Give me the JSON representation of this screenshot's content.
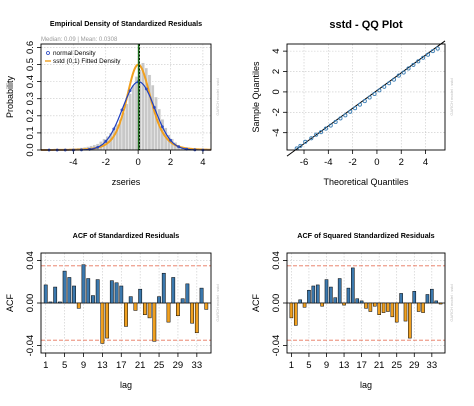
{
  "colors": {
    "hist_bar": "#c8c8c8",
    "hist_bar_edge": "#ffffff",
    "normal_curve": "#1f3fbf",
    "sstd_curve": "#f0a020",
    "mean_line": "#1a6e1a",
    "median_line": "#000000",
    "qq_points": "#3d7fb5",
    "qq_line": "#000000",
    "acf_pos": "#3b78ad",
    "acf_neg": "#f0a020",
    "conf_band": "#e8735a",
    "grid": "#c8c8c8",
    "credit": "#bbbbbb"
  },
  "chart_data": [
    {
      "type": "histogram",
      "title": "Empirical Density of Standardized Residuals",
      "subtitle": "Median: 0.09 | Mean: 0.0308",
      "xlabel": "zseries",
      "ylabel": "Probability",
      "credit": "GARCH model : sstd",
      "xlim": [
        -6,
        4.5
      ],
      "ylim": [
        0,
        0.62
      ],
      "xticks": [
        -4,
        -2,
        0,
        2,
        4
      ],
      "yticks": [
        0.0,
        0.1,
        0.2,
        0.3,
        0.4,
        0.5,
        0.6
      ],
      "grid": true,
      "median": 0.09,
      "mean": 0.0308,
      "bins": {
        "start": -5.8,
        "width": 0.2,
        "values": [
          0.005,
          0.0,
          0.005,
          0.0,
          0.0,
          0.005,
          0.008,
          0.0,
          0.008,
          0.01,
          0.012,
          0.014,
          0.016,
          0.02,
          0.025,
          0.03,
          0.037,
          0.05,
          0.065,
          0.08,
          0.1,
          0.12,
          0.15,
          0.18,
          0.22,
          0.27,
          0.33,
          0.38,
          0.43,
          0.47,
          0.51,
          0.48,
          0.44,
          0.38,
          0.31,
          0.24,
          0.18,
          0.13,
          0.09,
          0.065,
          0.045,
          0.03,
          0.02,
          0.013,
          0.008,
          0.005,
          0.003,
          0.002,
          0.0,
          0.0
        ]
      },
      "series": [
        {
          "name": "normal Density",
          "kind": "normal",
          "mean": 0.0308,
          "sd": 1.0
        },
        {
          "name": "sstd (0,1) Fitted Density",
          "kind": "sstd",
          "mean": 0.0,
          "sd": 1.0
        }
      ],
      "legend": {
        "placement": "top-left"
      }
    },
    {
      "type": "scatter",
      "title": "sstd - QQ Plot",
      "xlabel": "Theoretical Quantiles",
      "ylabel": "Sample Quantiles",
      "credit": "GARCH model : sstd",
      "xlim": [
        -7.4,
        5.6
      ],
      "ylim": [
        -5.7,
        4.7
      ],
      "xticks": [
        -6,
        -4,
        -2,
        0,
        2,
        4
      ],
      "yticks": [
        -4,
        -2,
        0,
        2,
        4
      ],
      "grid": true,
      "line": {
        "x": [
          -7.4,
          5.6
        ],
        "y": [
          -6.3,
          5.0
        ]
      },
      "points": {
        "x": [
          -6.6,
          -6.3,
          -5.9,
          -5.4,
          -5.0,
          -4.6,
          -4.2,
          -3.8,
          -3.4,
          -3.0,
          -2.6,
          -2.2,
          -1.8,
          -1.4,
          -1.0,
          -0.6,
          -0.2,
          0.2,
          0.6,
          1.0,
          1.4,
          1.8,
          2.2,
          2.6,
          3.0,
          3.4,
          3.8,
          4.2,
          4.6,
          5.0
        ],
        "y": [
          -5.55,
          -5.3,
          -4.9,
          -4.55,
          -4.2,
          -3.95,
          -3.6,
          -3.3,
          -2.95,
          -2.6,
          -2.3,
          -1.95,
          -1.6,
          -1.25,
          -0.9,
          -0.55,
          -0.2,
          0.15,
          0.5,
          0.85,
          1.2,
          1.6,
          1.9,
          2.3,
          2.65,
          3.0,
          3.35,
          3.65,
          4.0,
          4.25
        ]
      }
    },
    {
      "type": "bar",
      "title": "ACF of Standardized Residuals",
      "xlabel": "lag",
      "ylabel": "ACF",
      "credit": "GARCH model : sstd",
      "xlim": [
        0,
        36
      ],
      "ylim": [
        -0.047,
        0.047
      ],
      "xticks": [
        1,
        5,
        9,
        13,
        17,
        21,
        25,
        29,
        33
      ],
      "yticks": [
        -0.04,
        0.0,
        0.04
      ],
      "ci": 0.035,
      "grid": true,
      "lags": [
        1,
        2,
        3,
        4,
        5,
        6,
        7,
        8,
        9,
        10,
        11,
        12,
        13,
        14,
        15,
        16,
        17,
        18,
        19,
        20,
        21,
        22,
        23,
        24,
        25,
        26,
        27,
        28,
        29,
        30,
        31,
        32,
        33,
        34,
        35
      ],
      "values": [
        0.017,
        0.001,
        0.015,
        0.001,
        0.03,
        0.024,
        0.016,
        -0.005,
        0.036,
        0.023,
        0.007,
        0.022,
        -0.038,
        -0.033,
        0.021,
        0.019,
        0.016,
        -0.022,
        0.006,
        -0.007,
        0.013,
        -0.011,
        -0.014,
        -0.036,
        0.006,
        0.028,
        -0.018,
        0.024,
        -0.012,
        0.004,
        0.018,
        -0.019,
        -0.028,
        0.014,
        -0.006
      ]
    },
    {
      "type": "bar",
      "title": "ACF of Squared Standardized Residuals",
      "xlabel": "lag",
      "ylabel": "ACF",
      "credit": "GARCH model : sstd",
      "xlim": [
        0,
        36
      ],
      "ylim": [
        -0.047,
        0.047
      ],
      "xticks": [
        1,
        5,
        9,
        13,
        17,
        21,
        25,
        29,
        33
      ],
      "yticks": [
        -0.04,
        0.0,
        0.04
      ],
      "ci": 0.035,
      "grid": true,
      "lags": [
        1,
        2,
        3,
        4,
        5,
        6,
        7,
        8,
        9,
        10,
        11,
        12,
        13,
        14,
        15,
        16,
        17,
        18,
        19,
        20,
        21,
        22,
        23,
        24,
        25,
        26,
        27,
        28,
        29,
        30,
        31,
        32,
        33,
        34,
        35
      ],
      "values": [
        -0.014,
        -0.021,
        0.003,
        -0.004,
        0.012,
        0.016,
        0.017,
        -0.003,
        0.022,
        0.015,
        0.005,
        0.023,
        -0.002,
        0.014,
        0.033,
        0.004,
        0.002,
        -0.005,
        -0.008,
        -0.003,
        -0.011,
        -0.009,
        -0.008,
        -0.013,
        -0.018,
        0.009,
        -0.017,
        -0.033,
        0.011,
        -0.008,
        -0.009,
        0.008,
        0.013,
        0.002,
        -0.001
      ]
    }
  ]
}
